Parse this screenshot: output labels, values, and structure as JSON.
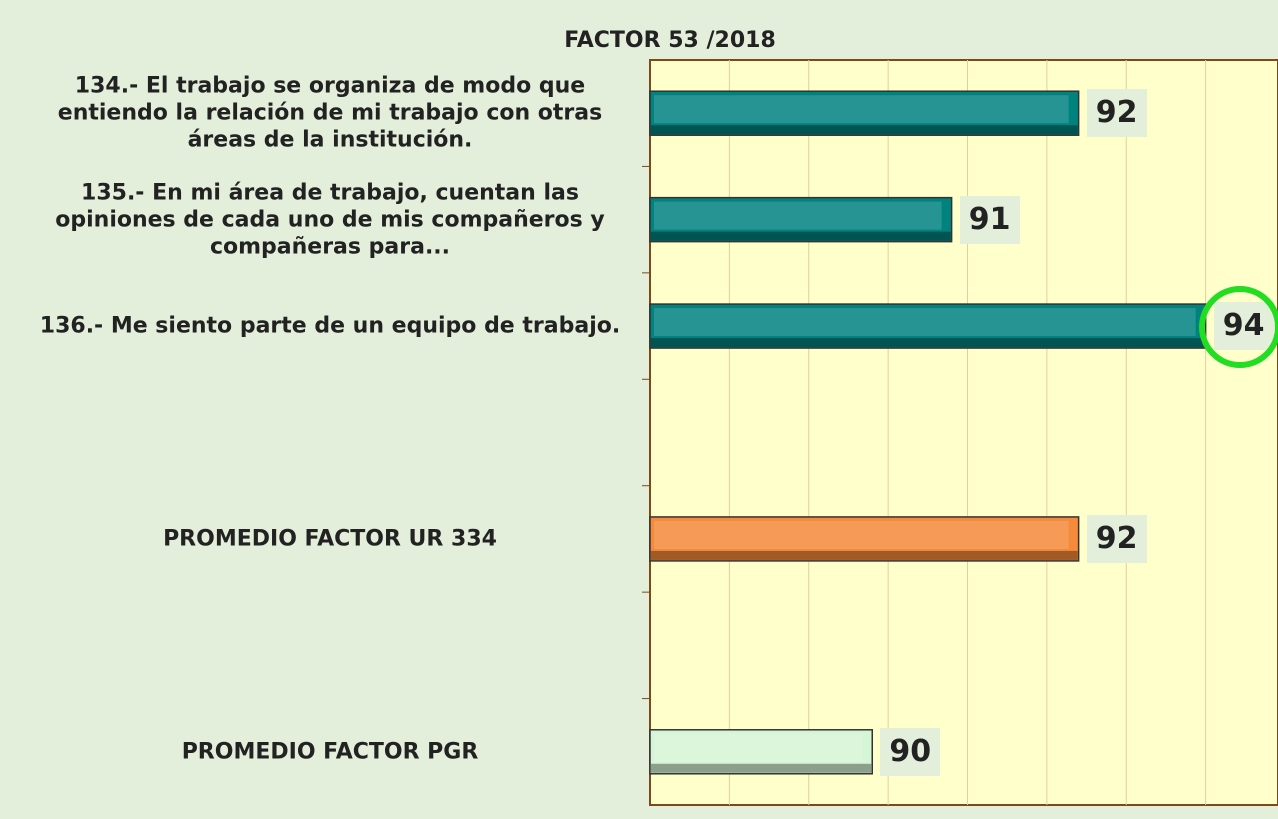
{
  "chart_data": {
    "type": "hbar",
    "title": "FACTOR 53 /2018",
    "categories": [
      "134.- El trabajo se organiza de modo que entiendo la relación de mi trabajo con otras áreas de la institución.",
      "135.- En mi área de trabajo, cuentan las opiniones de cada uno de mis compañeros y compañeras para...",
      "136.- Me siento parte de un equipo de trabajo.",
      null,
      "PROMEDIO FACTOR UR 334",
      null,
      "PROMEDIO FACTOR PGR"
    ],
    "values": [
      92.4,
      90.8,
      94.0,
      null,
      92.4,
      null,
      89.8
    ],
    "value_labels": [
      "92",
      "91",
      "94",
      null,
      "92",
      null,
      "90"
    ],
    "colors": [
      "#00827f",
      "#00827f",
      "#00827f",
      null,
      "#f58a3a",
      null,
      "#d6f5d6"
    ],
    "xlim": [
      87,
      95
    ],
    "xticks": [
      88,
      89,
      90,
      91,
      92,
      93,
      94
    ],
    "grid": true
  }
}
